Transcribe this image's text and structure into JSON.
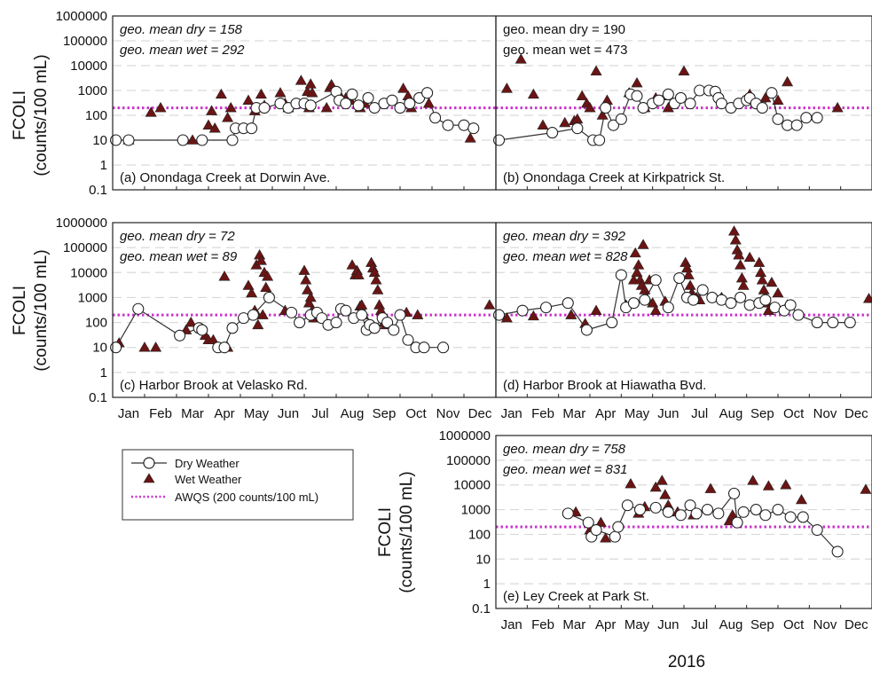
{
  "figure": {
    "ylabel_top": "FCOLI",
    "ylabel_bottom": "(counts/100 mL)",
    "xlabel": "2016",
    "months": [
      "Jan",
      "Feb",
      "Mar",
      "Apr",
      "May",
      "Jun",
      "Jul",
      "Aug",
      "Sep",
      "Oct",
      "Nov",
      "Dec"
    ],
    "y_ticks": [
      "0.1",
      "1",
      "10",
      "100",
      "1000",
      "10000",
      "100000",
      "1000000"
    ],
    "colors": {
      "dry_marker": "#ffffff",
      "dry_line": "#333333",
      "wet_marker": "#6b1414",
      "awqs": "#cc33cc",
      "grid": "#d9d9d9"
    },
    "legend": {
      "dry": "Dry Weather",
      "wet": "Wet Weather",
      "awqs": "AWQS (200 counts/100 mL)"
    }
  },
  "chart_data": [
    {
      "type": "scatter",
      "title": "(a) Onondaga Creek at Dorwin Ave.",
      "geo_dry": "geo. mean dry = 158",
      "geo_wet": "geo. mean wet = 292",
      "geo_style": "italic",
      "xlim": [
        0,
        12
      ],
      "ylim": [
        0.1,
        1000000
      ],
      "yscale": "log",
      "awqs": 200,
      "series": [
        {
          "name": "Dry Weather",
          "x": [
            0.1,
            0.5,
            2.2,
            2.8,
            3.75,
            3.85,
            4.1,
            4.35,
            4.5,
            4.75,
            5.25,
            5.5,
            5.75,
            6.0,
            6.2,
            7.0,
            7.1,
            7.3,
            7.5,
            7.7,
            8.0,
            8.2,
            8.5,
            8.75,
            9.0,
            9.3,
            9.6,
            9.85,
            10.1,
            10.5,
            11.0,
            11.3
          ],
          "y": [
            10,
            10,
            10,
            10,
            10,
            30,
            30,
            30,
            200,
            200,
            300,
            200,
            300,
            300,
            250,
            900,
            400,
            300,
            700,
            250,
            500,
            200,
            300,
            400,
            200,
            300,
            500,
            800,
            80,
            40,
            40,
            30
          ]
        },
        {
          "name": "Wet Weather",
          "x": [
            0.5,
            1.2,
            1.5,
            2.5,
            3.0,
            3.1,
            3.2,
            3.4,
            3.6,
            3.7,
            4.25,
            4.45,
            4.65,
            4.75,
            5.25,
            5.4,
            5.5,
            5.9,
            6.1,
            6.15,
            6.2,
            6.25,
            6.7,
            6.8,
            6.85,
            7.1,
            7.3,
            7.45,
            7.75,
            7.9,
            9.1,
            9.25,
            9.35,
            9.9,
            11.2
          ],
          "y": [
            10,
            130,
            200,
            10,
            40,
            150,
            30,
            700,
            80,
            200,
            400,
            150,
            700,
            250,
            800,
            300,
            200,
            2500,
            900,
            200,
            1800,
            800,
            200,
            1300,
            1700,
            700,
            500,
            400,
            200,
            300,
            1200,
            600,
            200,
            300,
            12
          ]
        }
      ]
    },
    {
      "type": "scatter",
      "title": "(b) Onondaga Creek at Kirkpatrick St.",
      "geo_dry": "geo. mean dry = 190",
      "geo_wet": "geo. mean wet = 473",
      "geo_style": "upright",
      "xlim": [
        0,
        12
      ],
      "ylim": [
        0.1,
        1000000
      ],
      "yscale": "log",
      "awqs": 200,
      "series": [
        {
          "name": "Dry Weather",
          "x": [
            0.1,
            1.8,
            2.6,
            3.1,
            3.3,
            3.5,
            3.75,
            4.0,
            4.3,
            4.5,
            4.7,
            5.0,
            5.2,
            5.5,
            5.7,
            5.9,
            6.2,
            6.5,
            6.8,
            7.0,
            7.1,
            7.2,
            7.5,
            7.75,
            8.0,
            8.1,
            8.3,
            8.5,
            8.8,
            9.0,
            9.3,
            9.6,
            9.9,
            10.25
          ],
          "y": [
            10,
            20,
            30,
            10,
            10,
            200,
            40,
            70,
            700,
            600,
            200,
            300,
            400,
            700,
            300,
            500,
            300,
            1000,
            1000,
            900,
            500,
            300,
            200,
            300,
            400,
            500,
            300,
            200,
            800,
            70,
            40,
            40,
            80,
            80
          ]
        },
        {
          "name": "Wet Weather",
          "x": [
            0.35,
            0.8,
            1.2,
            1.5,
            2.2,
            2.5,
            2.6,
            2.75,
            2.9,
            3.0,
            3.2,
            3.4,
            3.55,
            4.25,
            4.5,
            4.75,
            5.1,
            5.4,
            5.5,
            6.0,
            8.1,
            8.3,
            8.6,
            9.0,
            9.3,
            10.9
          ],
          "y": [
            1200,
            18000,
            700,
            40,
            50,
            60,
            70,
            600,
            300,
            200,
            6000,
            100,
            400,
            800,
            2000,
            200,
            500,
            600,
            200,
            6000,
            700,
            300,
            500,
            400,
            2200,
            200
          ]
        }
      ]
    },
    {
      "type": "scatter",
      "title": "(c) Harbor Brook at Velasko Rd.",
      "geo_dry": "geo. mean dry = 72",
      "geo_wet": "geo. mean wet = 89",
      "geo_style": "italic",
      "xlim": [
        0,
        12
      ],
      "ylim": [
        0.1,
        1000000
      ],
      "yscale": "log",
      "awqs": 200,
      "series": [
        {
          "name": "Dry Weather",
          "x": [
            0.1,
            0.8,
            2.1,
            2.7,
            2.8,
            3.3,
            3.5,
            3.75,
            4.1,
            4.4,
            4.9,
            5.6,
            5.85,
            6.2,
            6.4,
            6.55,
            6.75,
            7.0,
            7.15,
            7.3,
            7.55,
            7.8,
            7.95,
            8.05,
            8.2,
            8.45,
            8.6,
            8.8,
            9.0,
            9.25,
            9.5,
            9.75,
            10.35
          ],
          "y": [
            10,
            350,
            30,
            60,
            50,
            10,
            10,
            60,
            150,
            200,
            1000,
            250,
            100,
            200,
            250,
            150,
            80,
            100,
            350,
            300,
            150,
            200,
            50,
            80,
            60,
            150,
            100,
            50,
            200,
            20,
            10,
            10,
            10
          ]
        },
        {
          "name": "Wet Weather",
          "x": [
            0.2,
            1.0,
            1.35,
            2.3,
            2.45,
            2.9,
            3.0,
            3.15,
            3.5,
            3.6,
            4.25,
            4.35,
            4.45,
            4.5,
            4.55,
            4.6,
            4.65,
            4.7,
            4.75,
            4.8,
            4.85,
            5.4,
            6.0,
            6.05,
            6.1,
            6.15,
            6.2,
            6.25,
            6.3,
            7.5,
            7.6,
            7.65,
            7.7,
            7.75,
            7.8,
            7.85,
            8.1,
            8.15,
            8.2,
            8.25,
            8.3,
            8.35,
            8.4,
            8.5,
            8.55,
            9.2,
            9.55,
            11.8
          ],
          "y": [
            15,
            10,
            10,
            50,
            100,
            30,
            20,
            20,
            7000,
            10,
            3000,
            1500,
            300,
            20000,
            80,
            50000,
            30000,
            200,
            10000,
            2500,
            7000,
            300,
            12000,
            5000,
            2000,
            600,
            1000,
            300,
            150,
            20000,
            8000,
            12000,
            8000,
            450,
            500,
            200,
            25000,
            15000,
            10000,
            5000,
            2000,
            500,
            300,
            100,
            80,
            250,
            200,
            500
          ]
        }
      ]
    },
    {
      "type": "scatter",
      "title": "(d) Harbor Brook at Hiawatha Bvd.",
      "geo_dry": "geo. mean dry = 392",
      "geo_wet": "geo. mean wet = 828",
      "geo_style": "italic",
      "xlim": [
        0,
        12
      ],
      "ylim": [
        0.1,
        1000000
      ],
      "yscale": "log",
      "awqs": 200,
      "series": [
        {
          "name": "Dry Weather",
          "x": [
            0.1,
            0.85,
            1.6,
            2.3,
            2.9,
            3.7,
            4.0,
            4.15,
            4.4,
            4.75,
            5.1,
            5.5,
            5.85,
            6.1,
            6.3,
            6.6,
            6.9,
            7.2,
            7.5,
            7.8,
            8.1,
            8.4,
            8.6,
            8.9,
            9.2,
            9.4,
            9.65,
            10.25,
            10.75,
            11.3
          ],
          "y": [
            200,
            300,
            400,
            600,
            50,
            100,
            8000,
            400,
            600,
            800,
            5000,
            400,
            6000,
            1000,
            800,
            2000,
            1000,
            800,
            600,
            1000,
            500,
            600,
            800,
            400,
            300,
            500,
            200,
            100,
            100,
            100
          ]
        },
        {
          "name": "Wet Weather",
          "x": [
            0.35,
            1.2,
            2.4,
            2.85,
            3.2,
            4.15,
            4.4,
            4.45,
            4.5,
            4.55,
            4.6,
            4.65,
            4.7,
            4.75,
            4.8,
            4.9,
            5.0,
            5.1,
            5.4,
            6.05,
            6.1,
            6.15,
            6.2,
            6.25,
            6.3,
            6.4,
            6.5,
            7.2,
            7.6,
            7.65,
            7.7,
            7.75,
            7.8,
            7.85,
            7.9,
            8.1,
            8.4,
            8.45,
            8.5,
            8.55,
            8.6,
            8.65,
            8.7,
            8.8,
            9.0,
            9.3,
            11.9
          ],
          "y": [
            150,
            180,
            200,
            90,
            300,
            500,
            5000,
            60000,
            10000,
            20000,
            5000,
            3000,
            130000,
            2000,
            1000,
            5000,
            600,
            300,
            700,
            25000,
            15000,
            8000,
            3000,
            1500,
            1200,
            1000,
            800,
            1000,
            450000,
            200000,
            80000,
            50000,
            20000,
            6000,
            3000,
            40000,
            25000,
            10000,
            5000,
            2000,
            1000,
            600,
            300,
            4000,
            1500,
            500,
            900
          ]
        }
      ]
    },
    {
      "type": "scatter",
      "title": "(e) Ley Creek at Park St.",
      "geo_dry": "geo. mean dry = 758",
      "geo_wet": "geo. mean wet = 831",
      "geo_style": "italic",
      "xlim": [
        0,
        12
      ],
      "ylim": [
        0.1,
        1000000
      ],
      "yscale": "log",
      "awqs": 200,
      "series": [
        {
          "name": "Dry Weather",
          "x": [
            2.3,
            2.95,
            3.05,
            3.2,
            3.8,
            3.9,
            4.2,
            4.6,
            5.1,
            5.5,
            5.9,
            6.2,
            6.4,
            6.75,
            7.1,
            7.6,
            7.7,
            7.9,
            8.3,
            8.6,
            9.0,
            9.4,
            9.8,
            10.25,
            10.9
          ],
          "y": [
            700,
            300,
            80,
            150,
            80,
            200,
            1500,
            1000,
            1200,
            800,
            600,
            1500,
            700,
            1000,
            700,
            4500,
            300,
            800,
            1000,
            600,
            1000,
            500,
            500,
            150,
            20
          ]
        },
        {
          "name": "Wet Weather",
          "x": [
            2.55,
            3.0,
            3.35,
            3.5,
            4.3,
            4.55,
            4.75,
            5.1,
            5.3,
            5.4,
            5.5,
            5.8,
            6.3,
            6.85,
            7.45,
            7.55,
            8.2,
            8.35,
            8.7,
            9.25,
            9.75,
            11.8
          ],
          "y": [
            800,
            150,
            300,
            70,
            11000,
            700,
            1300,
            8000,
            15000,
            4000,
            1500,
            800,
            600,
            7000,
            350,
            600,
            15000,
            1000,
            9000,
            10000,
            2500,
            6500
          ]
        }
      ]
    }
  ]
}
